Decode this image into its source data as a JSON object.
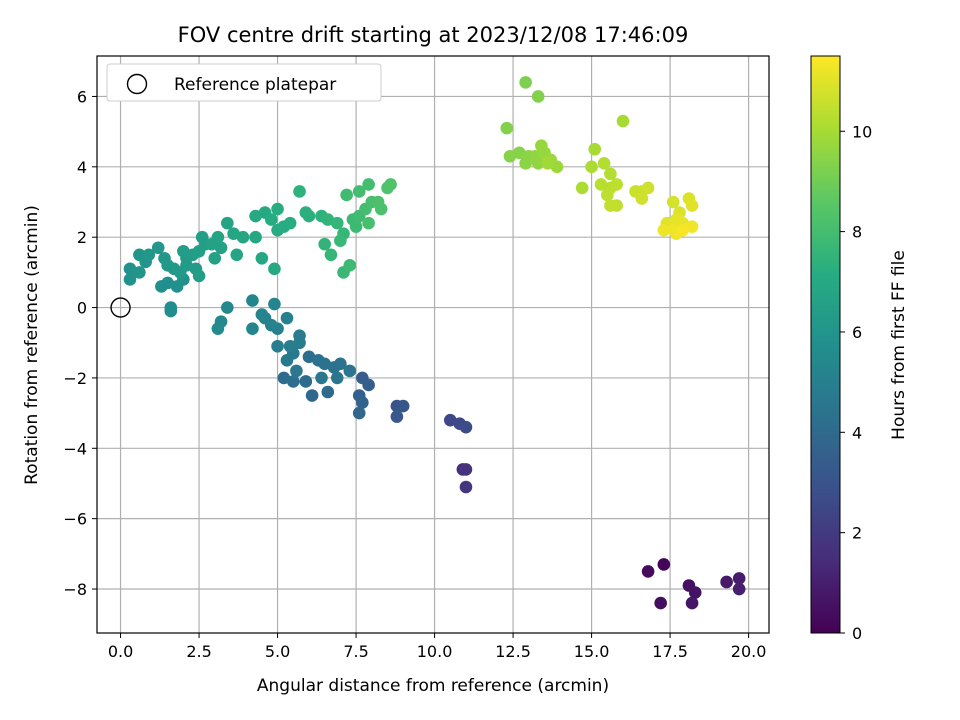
{
  "chart_data": {
    "type": "scatter",
    "title": "FOV centre drift starting at 2023/12/08 17:46:09",
    "xlabel": "Angular distance from reference (arcmin)",
    "ylabel": "Rotation from reference (arcmin)",
    "xlim": [
      -0.75,
      20.65
    ],
    "ylim": [
      -9.25,
      7.15
    ],
    "xticks": [
      0.0,
      2.5,
      5.0,
      7.5,
      10.0,
      12.5,
      15.0,
      17.5,
      20.0
    ],
    "xtick_labels": [
      "0.0",
      "2.5",
      "5.0",
      "7.5",
      "10.0",
      "12.5",
      "15.0",
      "17.5",
      "20.0"
    ],
    "yticks": [
      -8,
      -6,
      -4,
      -2,
      0,
      2,
      4,
      6
    ],
    "ytick_labels": [
      "−8",
      "−6",
      "−4",
      "−2",
      "0",
      "2",
      "4",
      "6"
    ],
    "grid": true,
    "legend": {
      "entries": [
        {
          "label": "Reference platepar",
          "marker": "open-circle",
          "x": 0,
          "y": 0
        }
      ],
      "position": "upper-left"
    },
    "colorbar": {
      "label": "Hours from first FF file",
      "colormap": "viridis",
      "min": 0,
      "max": 11.5,
      "ticks": [
        0,
        2,
        4,
        6,
        8,
        10
      ],
      "tick_labels": [
        "0",
        "2",
        "4",
        "6",
        "8",
        "10"
      ]
    },
    "points": [
      [
        17.3,
        -7.3,
        0.1
      ],
      [
        16.8,
        -7.5,
        0.3
      ],
      [
        17.2,
        -8.4,
        0.4
      ],
      [
        18.1,
        -7.9,
        0.5
      ],
      [
        18.3,
        -8.1,
        0.6
      ],
      [
        18.2,
        -8.4,
        0.7
      ],
      [
        19.3,
        -7.8,
        0.8
      ],
      [
        19.7,
        -7.7,
        0.9
      ],
      [
        19.7,
        -8.0,
        1.0
      ],
      [
        10.9,
        -4.6,
        1.6
      ],
      [
        11.0,
        -4.6,
        1.7
      ],
      [
        11.0,
        -5.1,
        1.8
      ],
      [
        10.5,
        -3.2,
        2.5
      ],
      [
        10.8,
        -3.3,
        2.6
      ],
      [
        11.0,
        -3.4,
        2.7
      ],
      [
        8.8,
        -2.8,
        3.0
      ],
      [
        9.0,
        -2.8,
        3.1
      ],
      [
        8.8,
        -3.1,
        3.2
      ],
      [
        7.7,
        -2.0,
        3.4
      ],
      [
        7.9,
        -2.2,
        3.5
      ],
      [
        7.6,
        -2.5,
        3.6
      ],
      [
        7.7,
        -2.7,
        3.7
      ],
      [
        7.6,
        -3.0,
        3.8
      ],
      [
        6.1,
        -2.5,
        3.9
      ],
      [
        6.6,
        -2.4,
        4.0
      ],
      [
        5.9,
        -2.1,
        4.1
      ],
      [
        5.2,
        -2.0,
        4.1
      ],
      [
        5.5,
        -2.1,
        4.2
      ],
      [
        6.0,
        -1.4,
        4.2
      ],
      [
        6.3,
        -1.5,
        4.3
      ],
      [
        6.5,
        -1.6,
        4.3
      ],
      [
        6.8,
        -1.7,
        4.4
      ],
      [
        7.0,
        -1.6,
        4.4
      ],
      [
        7.3,
        -1.8,
        4.5
      ],
      [
        6.9,
        -2.0,
        4.5
      ],
      [
        6.4,
        -2.0,
        4.6
      ],
      [
        5.6,
        -1.8,
        4.6
      ],
      [
        5.3,
        -1.5,
        4.7
      ],
      [
        5.5,
        -1.3,
        4.7
      ],
      [
        5.7,
        -1.0,
        4.8
      ],
      [
        5.7,
        -0.8,
        4.8
      ],
      [
        5.0,
        -1.1,
        4.9
      ],
      [
        5.4,
        -1.1,
        4.9
      ],
      [
        5.3,
        -0.3,
        5.0
      ],
      [
        5.0,
        -0.6,
        5.0
      ],
      [
        4.6,
        -0.3,
        5.1
      ],
      [
        4.8,
        -0.5,
        5.1
      ],
      [
        4.5,
        -0.2,
        5.2
      ],
      [
        4.9,
        0.1,
        5.2
      ],
      [
        4.2,
        0.2,
        5.3
      ],
      [
        4.2,
        -0.6,
        5.3
      ],
      [
        3.4,
        0.0,
        5.4
      ],
      [
        3.2,
        -0.4,
        5.4
      ],
      [
        3.1,
        -0.6,
        5.5
      ],
      [
        1.6,
        0.0,
        5.6
      ],
      [
        1.6,
        -0.1,
        5.6
      ],
      [
        1.3,
        0.6,
        5.7
      ],
      [
        1.5,
        0.7,
        5.7
      ],
      [
        1.8,
        0.6,
        5.8
      ],
      [
        2.0,
        0.8,
        5.8
      ],
      [
        0.3,
        0.8,
        5.9
      ],
      [
        0.3,
        1.1,
        5.9
      ],
      [
        0.6,
        1.0,
        6.0
      ],
      [
        0.8,
        1.3,
        6.0
      ],
      [
        0.6,
        1.5,
        6.0
      ],
      [
        0.9,
        1.5,
        6.1
      ],
      [
        1.2,
        1.7,
        6.1
      ],
      [
        1.4,
        1.4,
        6.1
      ],
      [
        1.5,
        1.2,
        6.2
      ],
      [
        1.7,
        1.1,
        6.2
      ],
      [
        1.9,
        1.0,
        6.2
      ],
      [
        2.1,
        1.2,
        6.3
      ],
      [
        2.1,
        1.4,
        6.3
      ],
      [
        2.4,
        1.1,
        6.3
      ],
      [
        2.5,
        0.9,
        6.4
      ],
      [
        2.0,
        1.6,
        6.4
      ],
      [
        2.3,
        1.5,
        6.4
      ],
      [
        2.5,
        1.6,
        6.5
      ],
      [
        2.7,
        1.8,
        6.5
      ],
      [
        2.6,
        2.0,
        6.5
      ],
      [
        2.9,
        1.8,
        6.6
      ],
      [
        3.0,
        1.4,
        6.6
      ],
      [
        3.2,
        1.7,
        6.6
      ],
      [
        3.1,
        2.0,
        6.7
      ],
      [
        3.4,
        2.4,
        6.7
      ],
      [
        3.6,
        2.1,
        6.8
      ],
      [
        3.7,
        1.5,
        6.8
      ],
      [
        3.9,
        2.0,
        6.8
      ],
      [
        4.3,
        2.0,
        6.9
      ],
      [
        4.5,
        1.4,
        6.9
      ],
      [
        4.9,
        1.1,
        7.0
      ],
      [
        4.3,
        2.6,
        7.0
      ],
      [
        4.6,
        2.7,
        7.0
      ],
      [
        4.8,
        2.5,
        7.1
      ],
      [
        5.0,
        2.2,
        7.1
      ],
      [
        5.2,
        2.3,
        7.1
      ],
      [
        5.0,
        2.8,
        7.2
      ],
      [
        5.4,
        2.4,
        7.2
      ],
      [
        5.9,
        2.7,
        7.3
      ],
      [
        6.0,
        2.6,
        7.3
      ],
      [
        5.7,
        3.3,
        7.4
      ],
      [
        6.4,
        2.6,
        7.4
      ],
      [
        6.6,
        2.5,
        7.5
      ],
      [
        6.5,
        1.8,
        7.5
      ],
      [
        6.7,
        1.5,
        7.6
      ],
      [
        6.9,
        2.4,
        7.6
      ],
      [
        7.1,
        2.1,
        7.6
      ],
      [
        7.0,
        1.9,
        7.7
      ],
      [
        7.1,
        1.0,
        7.7
      ],
      [
        7.3,
        1.2,
        7.8
      ],
      [
        7.4,
        2.5,
        7.8
      ],
      [
        7.5,
        2.3,
        7.8
      ],
      [
        7.2,
        3.2,
        7.9
      ],
      [
        7.6,
        2.6,
        7.9
      ],
      [
        7.6,
        3.3,
        8.0
      ],
      [
        7.8,
        2.8,
        8.0
      ],
      [
        7.9,
        3.5,
        8.0
      ],
      [
        8.0,
        3.0,
        8.1
      ],
      [
        7.9,
        2.4,
        8.1
      ],
      [
        8.2,
        3.0,
        8.2
      ],
      [
        8.3,
        2.8,
        8.2
      ],
      [
        8.5,
        3.4,
        8.3
      ],
      [
        8.6,
        3.5,
        8.3
      ],
      [
        12.9,
        6.4,
        9.2
      ],
      [
        13.3,
        6.0,
        9.3
      ],
      [
        12.3,
        5.1,
        9.3
      ],
      [
        12.4,
        4.3,
        9.4
      ],
      [
        12.7,
        4.4,
        9.4
      ],
      [
        12.9,
        4.1,
        9.5
      ],
      [
        13.0,
        4.3,
        9.5
      ],
      [
        13.2,
        4.3,
        9.6
      ],
      [
        13.3,
        4.1,
        9.6
      ],
      [
        13.4,
        4.6,
        9.7
      ],
      [
        13.5,
        4.4,
        9.7
      ],
      [
        13.7,
        4.2,
        9.8
      ],
      [
        13.9,
        4.0,
        9.8
      ],
      [
        13.6,
        4.1,
        9.9
      ],
      [
        15.1,
        4.5,
        10.0
      ],
      [
        16.0,
        5.3,
        10.0
      ],
      [
        14.7,
        3.4,
        10.1
      ],
      [
        15.0,
        4.0,
        10.1
      ],
      [
        15.4,
        4.1,
        10.2
      ],
      [
        15.6,
        3.8,
        10.2
      ],
      [
        15.3,
        3.5,
        10.3
      ],
      [
        15.6,
        3.4,
        10.3
      ],
      [
        15.8,
        3.5,
        10.4
      ],
      [
        15.5,
        3.2,
        10.4
      ],
      [
        15.6,
        2.9,
        10.5
      ],
      [
        15.8,
        2.9,
        10.5
      ],
      [
        16.4,
        3.3,
        10.6
      ],
      [
        16.6,
        3.3,
        10.6
      ],
      [
        16.8,
        3.4,
        10.7
      ],
      [
        16.6,
        3.1,
        10.7
      ],
      [
        17.6,
        3.0,
        10.8
      ],
      [
        18.1,
        3.1,
        10.9
      ],
      [
        17.8,
        2.7,
        10.9
      ],
      [
        18.2,
        2.9,
        11.0
      ],
      [
        17.4,
        2.4,
        11.0
      ],
      [
        17.7,
        2.5,
        11.1
      ],
      [
        17.9,
        2.4,
        11.1
      ],
      [
        17.3,
        2.2,
        11.2
      ],
      [
        17.6,
        2.2,
        11.2
      ],
      [
        17.7,
        2.1,
        11.3
      ],
      [
        18.2,
        2.3,
        11.3
      ],
      [
        17.9,
        2.2,
        11.4
      ]
    ]
  }
}
